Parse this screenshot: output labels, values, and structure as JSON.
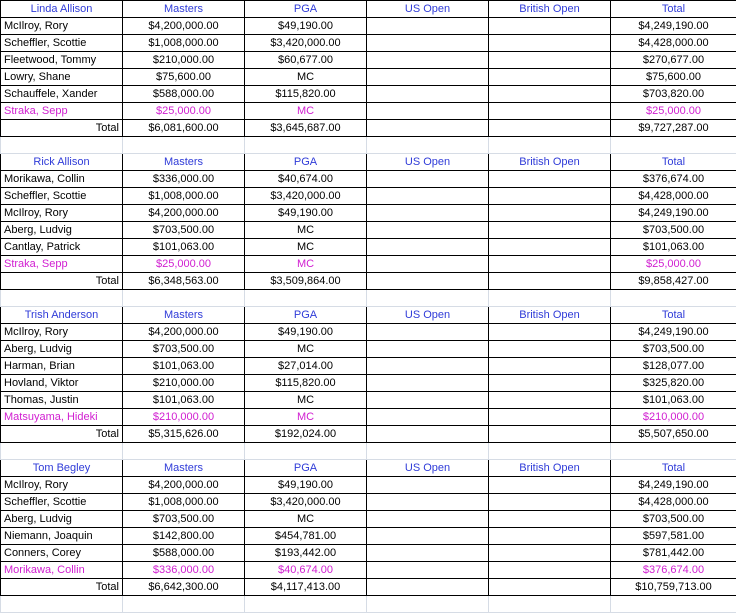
{
  "columns": [
    "Masters",
    "PGA",
    "US Open",
    "British Open",
    "Total"
  ],
  "total_label": "Total",
  "groups": [
    {
      "name": "Linda Allison",
      "players": [
        {
          "name": "McIlroy, Rory",
          "masters": "$4,200,000.00",
          "pga": "$49,190.00",
          "usopen": "",
          "british": "",
          "total": "$4,249,190.00",
          "sub": false
        },
        {
          "name": "Scheffler, Scottie",
          "masters": "$1,008,000.00",
          "pga": "$3,420,000.00",
          "usopen": "",
          "british": "",
          "total": "$4,428,000.00",
          "sub": false
        },
        {
          "name": "Fleetwood, Tommy",
          "masters": "$210,000.00",
          "pga": "$60,677.00",
          "usopen": "",
          "british": "",
          "total": "$270,677.00",
          "sub": false
        },
        {
          "name": "Lowry, Shane",
          "masters": "$75,600.00",
          "pga": "MC",
          "usopen": "",
          "british": "",
          "total": "$75,600.00",
          "sub": false
        },
        {
          "name": "Schauffele, Xander",
          "masters": "$588,000.00",
          "pga": "$115,820.00",
          "usopen": "",
          "british": "",
          "total": "$703,820.00",
          "sub": false
        },
        {
          "name": "Straka, Sepp",
          "masters": "$25,000.00",
          "pga": "MC",
          "usopen": "",
          "british": "",
          "total": "$25,000.00",
          "sub": true
        }
      ],
      "totals": {
        "masters": "$6,081,600.00",
        "pga": "$3,645,687.00",
        "usopen": "",
        "british": "",
        "total": "$9,727,287.00"
      }
    },
    {
      "name": "Rick Allison",
      "players": [
        {
          "name": "Morikawa, Collin",
          "masters": "$336,000.00",
          "pga": "$40,674.00",
          "usopen": "",
          "british": "",
          "total": "$376,674.00",
          "sub": false
        },
        {
          "name": "Scheffler, Scottie",
          "masters": "$1,008,000.00",
          "pga": "$3,420,000.00",
          "usopen": "",
          "british": "",
          "total": "$4,428,000.00",
          "sub": false
        },
        {
          "name": "McIlroy, Rory",
          "masters": "$4,200,000.00",
          "pga": "$49,190.00",
          "usopen": "",
          "british": "",
          "total": "$4,249,190.00",
          "sub": false
        },
        {
          "name": "Aberg, Ludvig",
          "masters": "$703,500.00",
          "pga": "MC",
          "usopen": "",
          "british": "",
          "total": "$703,500.00",
          "sub": false
        },
        {
          "name": "Cantlay, Patrick",
          "masters": "$101,063.00",
          "pga": "MC",
          "usopen": "",
          "british": "",
          "total": "$101,063.00",
          "sub": false
        },
        {
          "name": "Straka, Sepp",
          "masters": "$25,000.00",
          "pga": "MC",
          "usopen": "",
          "british": "",
          "total": "$25,000.00",
          "sub": true
        }
      ],
      "totals": {
        "masters": "$6,348,563.00",
        "pga": "$3,509,864.00",
        "usopen": "",
        "british": "",
        "total": "$9,858,427.00"
      }
    },
    {
      "name": "Trish Anderson",
      "players": [
        {
          "name": "McIlroy, Rory",
          "masters": "$4,200,000.00",
          "pga": "$49,190.00",
          "usopen": "",
          "british": "",
          "total": "$4,249,190.00",
          "sub": false
        },
        {
          "name": "Aberg, Ludvig",
          "masters": "$703,500.00",
          "pga": "MC",
          "usopen": "",
          "british": "",
          "total": "$703,500.00",
          "sub": false
        },
        {
          "name": "Harman, Brian",
          "masters": "$101,063.00",
          "pga": "$27,014.00",
          "usopen": "",
          "british": "",
          "total": "$128,077.00",
          "sub": false
        },
        {
          "name": "Hovland, Viktor",
          "masters": "$210,000.00",
          "pga": "$115,820.00",
          "usopen": "",
          "british": "",
          "total": "$325,820.00",
          "sub": false
        },
        {
          "name": "Thomas, Justin",
          "masters": "$101,063.00",
          "pga": "MC",
          "usopen": "",
          "british": "",
          "total": "$101,063.00",
          "sub": false
        },
        {
          "name": "Matsuyama, Hideki",
          "masters": "$210,000.00",
          "pga": "MC",
          "usopen": "",
          "british": "",
          "total": "$210,000.00",
          "sub": true
        }
      ],
      "totals": {
        "masters": "$5,315,626.00",
        "pga": "$192,024.00",
        "usopen": "",
        "british": "",
        "total": "$5,507,650.00"
      }
    },
    {
      "name": "Tom Begley",
      "players": [
        {
          "name": "McIlroy, Rory",
          "masters": "$4,200,000.00",
          "pga": "$49,190.00",
          "usopen": "",
          "british": "",
          "total": "$4,249,190.00",
          "sub": false
        },
        {
          "name": "Scheffler, Scottie",
          "masters": "$1,008,000.00",
          "pga": "$3,420,000.00",
          "usopen": "",
          "british": "",
          "total": "$4,428,000.00",
          "sub": false
        },
        {
          "name": "Aberg, Ludvig",
          "masters": "$703,500.00",
          "pga": "MC",
          "usopen": "",
          "british": "",
          "total": "$703,500.00",
          "sub": false
        },
        {
          "name": "Niemann, Joaquin",
          "masters": "$142,800.00",
          "pga": "$454,781.00",
          "usopen": "",
          "british": "",
          "total": "$597,581.00",
          "sub": false
        },
        {
          "name": "Conners, Corey",
          "masters": "$588,000.00",
          "pga": "$193,442.00",
          "usopen": "",
          "british": "",
          "total": "$781,442.00",
          "sub": false
        },
        {
          "name": "Morikawa, Collin",
          "masters": "$336,000.00",
          "pga": "$40,674.00",
          "usopen": "",
          "british": "",
          "total": "$376,674.00",
          "sub": true
        }
      ],
      "totals": {
        "masters": "$6,642,300.00",
        "pga": "$4,117,413.00",
        "usopen": "",
        "british": "",
        "total": "$10,759,713.00"
      }
    }
  ]
}
